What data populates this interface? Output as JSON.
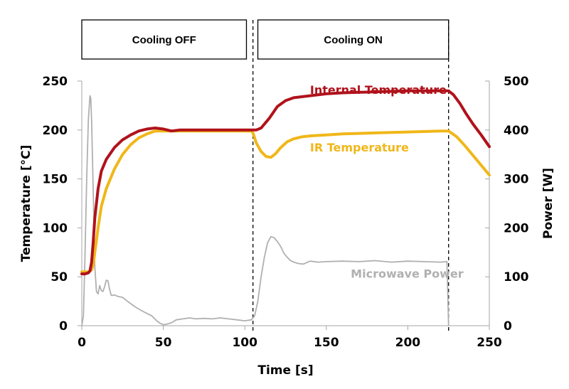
{
  "chart_data": {
    "type": "line",
    "title": "",
    "xlabel": "Time [s]",
    "ylabel": "Temperature [°C]",
    "y2label": "Power [W]",
    "xlim": [
      0,
      250
    ],
    "ylim": [
      0,
      250
    ],
    "y2lim": [
      0,
      500
    ],
    "xticks": [
      0,
      50,
      100,
      150,
      200,
      250
    ],
    "yticks": [
      0,
      50,
      100,
      150,
      200,
      250
    ],
    "y2ticks": [
      0,
      100,
      200,
      300,
      400,
      500
    ],
    "grid": false,
    "phase_markers": [
      105,
      225
    ],
    "phase_boxes": [
      {
        "label": "Cooling OFF",
        "x_start": 0,
        "x_end": 101
      },
      {
        "label": "Cooling ON",
        "x_start": 108,
        "x_end": 225
      }
    ],
    "series": [
      {
        "name": "Internal Temperature",
        "axis": "left",
        "color": "#b0121b",
        "label_at": [
          140,
          237
        ],
        "x": [
          0,
          2,
          4,
          5,
          6,
          7,
          8,
          10,
          12,
          15,
          20,
          25,
          30,
          35,
          40,
          45,
          50,
          55,
          60,
          70,
          80,
          90,
          100,
          104,
          107,
          110,
          115,
          120,
          125,
          130,
          140,
          150,
          160,
          180,
          200,
          220,
          225,
          228,
          232,
          236,
          240,
          245,
          250
        ],
        "values": [
          53,
          53,
          54,
          56,
          65,
          85,
          110,
          140,
          158,
          170,
          182,
          190,
          195,
          199,
          201,
          202,
          201,
          199,
          200,
          200,
          200,
          200,
          200,
          200,
          200,
          202,
          212,
          224,
          230,
          233,
          235,
          237,
          238,
          239,
          240,
          240,
          240,
          236,
          227,
          216,
          206,
          195,
          183
        ]
      },
      {
        "name": "IR Temperature",
        "axis": "left",
        "color": "#f0b719",
        "label_at": [
          140,
          178
        ],
        "x": [
          0,
          2,
          4,
          6,
          7,
          8,
          10,
          12,
          15,
          20,
          25,
          30,
          35,
          40,
          45,
          50,
          55,
          60,
          70,
          80,
          90,
          100,
          104,
          105,
          107,
          110,
          113,
          116,
          119,
          122,
          126,
          130,
          135,
          140,
          150,
          160,
          180,
          200,
          220,
          225,
          230,
          235,
          240,
          245,
          250
        ],
        "values": [
          55,
          55,
          55,
          57,
          62,
          75,
          100,
          122,
          140,
          160,
          175,
          185,
          192,
          196,
          199,
          199,
          199,
          199,
          199,
          199,
          199,
          199,
          199,
          197,
          187,
          178,
          173,
          172,
          176,
          182,
          188,
          191,
          193,
          194,
          195,
          196,
          197,
          198,
          199,
          199,
          193,
          184,
          174,
          164,
          154
        ]
      },
      {
        "name": "Microwave Power",
        "axis": "right",
        "color": "#b0b0b0",
        "label_at": [
          165,
          98
        ],
        "x": [
          0,
          1,
          2,
          3,
          4,
          5,
          5.5,
          6,
          7,
          8,
          9,
          10,
          11,
          12,
          13,
          14,
          15,
          16,
          17,
          18,
          19,
          20,
          22,
          25,
          28,
          30,
          33,
          36,
          40,
          43,
          46,
          48,
          50,
          52,
          55,
          58,
          62,
          66,
          70,
          75,
          80,
          85,
          90,
          95,
          100,
          104,
          106,
          108,
          110,
          112,
          114,
          116,
          118,
          120,
          122,
          124,
          126,
          128,
          130,
          133,
          136,
          140,
          145,
          150,
          160,
          170,
          180,
          190,
          200,
          210,
          220,
          224,
          225
        ],
        "values": [
          0,
          20,
          150,
          300,
          420,
          470,
          465,
          420,
          280,
          120,
          70,
          65,
          82,
          72,
          70,
          80,
          93,
          92,
          75,
          62,
          62,
          63,
          60,
          58,
          50,
          45,
          38,
          32,
          25,
          20,
          10,
          5,
          2,
          3,
          6,
          12,
          14,
          16,
          14,
          15,
          14,
          16,
          14,
          12,
          10,
          12,
          20,
          50,
          100,
          140,
          170,
          182,
          180,
          172,
          162,
          148,
          140,
          133,
          130,
          127,
          126,
          132,
          130,
          131,
          132,
          131,
          133,
          130,
          132,
          131,
          130,
          131,
          0
        ]
      }
    ]
  }
}
